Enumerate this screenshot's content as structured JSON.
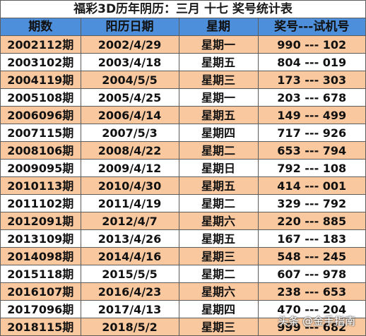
{
  "title": "福彩3D历年阴历：三月  十七  奖号统计表",
  "table": {
    "headers": [
      "期数",
      "阳历日期",
      "星期",
      "奖号---试机号"
    ],
    "rows": [
      {
        "period": "2002112期",
        "date": "2002/4/29",
        "weekday": "星期一",
        "prize": "990",
        "sep": "---",
        "test": "102"
      },
      {
        "period": "2003102期",
        "date": "2003/4/18",
        "weekday": "星期五",
        "prize": "804",
        "sep": "---",
        "test": "019"
      },
      {
        "period": "2004119期",
        "date": "2004/5/5",
        "weekday": "星期三",
        "prize": "173",
        "sep": "---",
        "test": "303"
      },
      {
        "period": "2005108期",
        "date": "2005/4/25",
        "weekday": "星期一",
        "prize": "203",
        "sep": "---",
        "test": "678"
      },
      {
        "period": "2006096期",
        "date": "2006/4/14",
        "weekday": "星期五",
        "prize": "149",
        "sep": "---",
        "test": "499"
      },
      {
        "period": "2007115期",
        "date": "2007/5/3",
        "weekday": "星期四",
        "prize": "717",
        "sep": "---",
        "test": "926"
      },
      {
        "period": "2008106期",
        "date": "2008/4/22",
        "weekday": "星期二",
        "prize": "653",
        "sep": "---",
        "test": "794"
      },
      {
        "period": "2009095期",
        "date": "2009/4/12",
        "weekday": "星期日",
        "prize": "792",
        "sep": "---",
        "test": "108"
      },
      {
        "period": "2010113期",
        "date": "2010/4/30",
        "weekday": "星期五",
        "prize": "414",
        "sep": "---",
        "test": "001"
      },
      {
        "period": "2011102期",
        "date": "2011/4/19",
        "weekday": "星期二",
        "prize": "329",
        "sep": "---",
        "test": "792"
      },
      {
        "period": "2012091期",
        "date": "2012/4/7",
        "weekday": "星期六",
        "prize": "220",
        "sep": "---",
        "test": "885"
      },
      {
        "period": "2013109期",
        "date": "2013/4/26",
        "weekday": "星期五",
        "prize": "167",
        "sep": "---",
        "test": "183"
      },
      {
        "period": "2014098期",
        "date": "2014/4/16",
        "weekday": "星期三",
        "prize": "548",
        "sep": "---",
        "test": "245"
      },
      {
        "period": "2015118期",
        "date": "2015/5/5",
        "weekday": "星期二",
        "prize": "607",
        "sep": "---",
        "test": "978"
      },
      {
        "period": "2016107期",
        "date": "2016/4/23",
        "weekday": "星期六",
        "prize": "238",
        "sep": "---",
        "test": "653"
      },
      {
        "period": "2017096期",
        "date": "2017/4/13",
        "weekday": "星期四",
        "prize": "470",
        "sep": "---",
        "test": "204"
      },
      {
        "period": "2018115期",
        "date": "2018/5/2",
        "weekday": "星期三",
        "prize": "999",
        "sep": "---",
        "test": "682"
      }
    ]
  },
  "watermark": {
    "text": "头条 @金手指南",
    "icon": "watermark-logo-icon"
  },
  "colors": {
    "header_bg": "#4d8fdb",
    "row_highlight": "#fac89e",
    "row_plain": "#ffffff",
    "border": "#5c5c5c"
  }
}
